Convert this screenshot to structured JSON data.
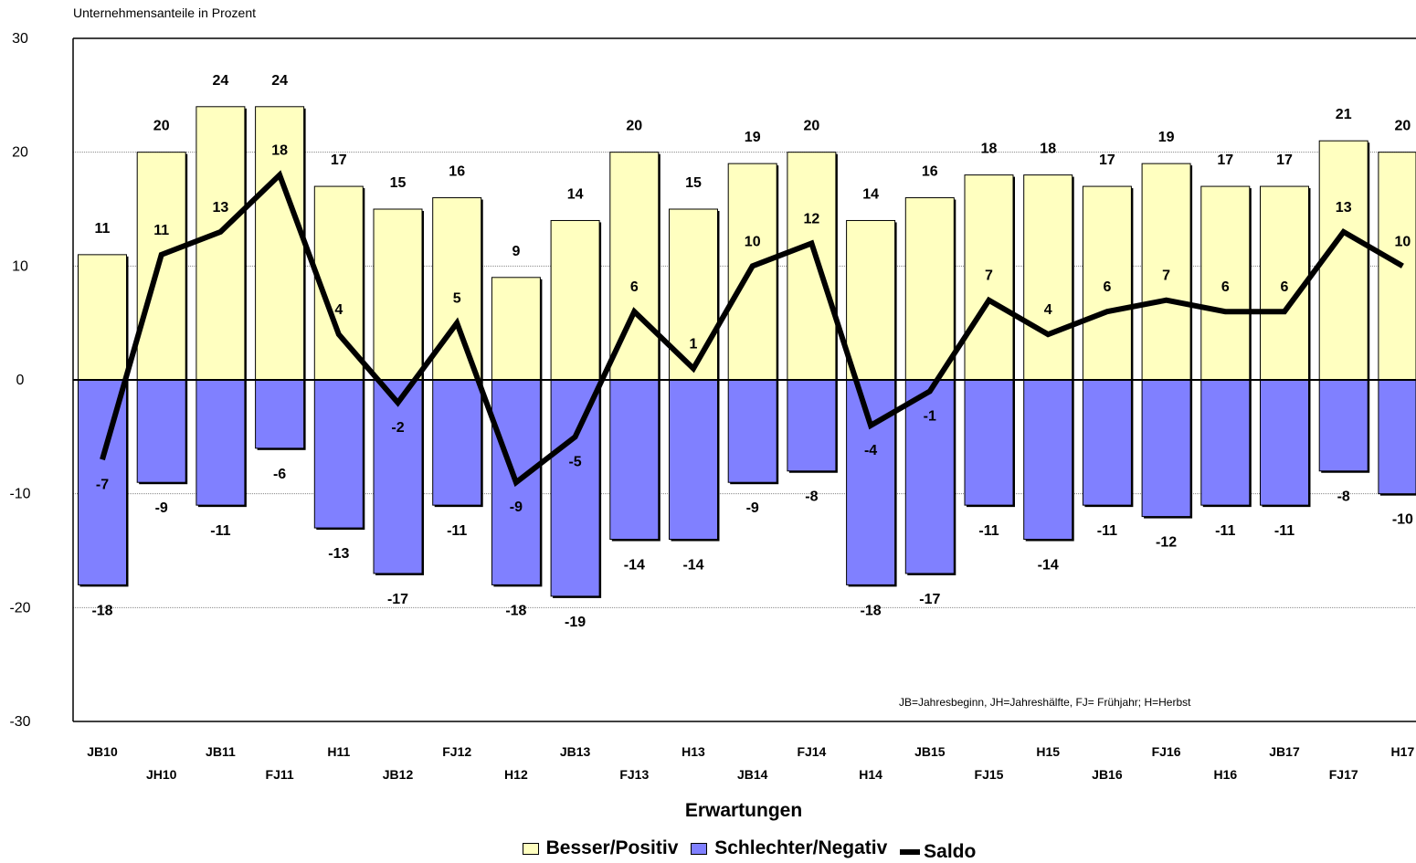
{
  "chart_data": {
    "type": "bar",
    "title": "",
    "ylabel": "Unternehmensanteile in Prozent",
    "xlabel": "Erwartungen",
    "note": "JB=Jahresbeginn, JH=Jahreshälfte, FJ= Frühjahr; H=Herbst",
    "ylim": [
      -30,
      30
    ],
    "yticks": [
      30,
      20,
      10,
      0,
      -10,
      -20,
      -30
    ],
    "grid": true,
    "legend_position": "bottom",
    "categories": [
      "JB10",
      "JH10",
      "JB11",
      "FJ11",
      "H11",
      "JB12",
      "FJ12",
      "H12",
      "JB13",
      "FJ13",
      "H13",
      "JB14",
      "FJ14",
      "H14",
      "JB15",
      "FJ15",
      "H15",
      "JB16",
      "FJ16",
      "H16",
      "JB17",
      "FJ17",
      "H17"
    ],
    "series": [
      {
        "name": "Besser/Positiv",
        "kind": "bar",
        "color": "#ffffc0",
        "values": [
          11,
          20,
          24,
          24,
          17,
          15,
          16,
          9,
          14,
          20,
          15,
          19,
          20,
          14,
          16,
          18,
          18,
          17,
          19,
          17,
          17,
          21,
          20
        ]
      },
      {
        "name": "Schlechter/Negativ",
        "kind": "bar",
        "color": "#8080ff",
        "values": [
          -18,
          -9,
          -11,
          -6,
          -13,
          -17,
          -11,
          -18,
          -19,
          -14,
          -14,
          -9,
          -8,
          -18,
          -17,
          -11,
          -14,
          -11,
          -12,
          -11,
          -11,
          -8,
          -10
        ]
      },
      {
        "name": "Saldo",
        "kind": "line",
        "color": "#000000",
        "values": [
          -7,
          11,
          13,
          18,
          4,
          -2,
          5,
          -9,
          -5,
          6,
          1,
          10,
          12,
          -4,
          -1,
          7,
          4,
          6,
          7,
          6,
          6,
          13,
          10
        ]
      }
    ]
  }
}
